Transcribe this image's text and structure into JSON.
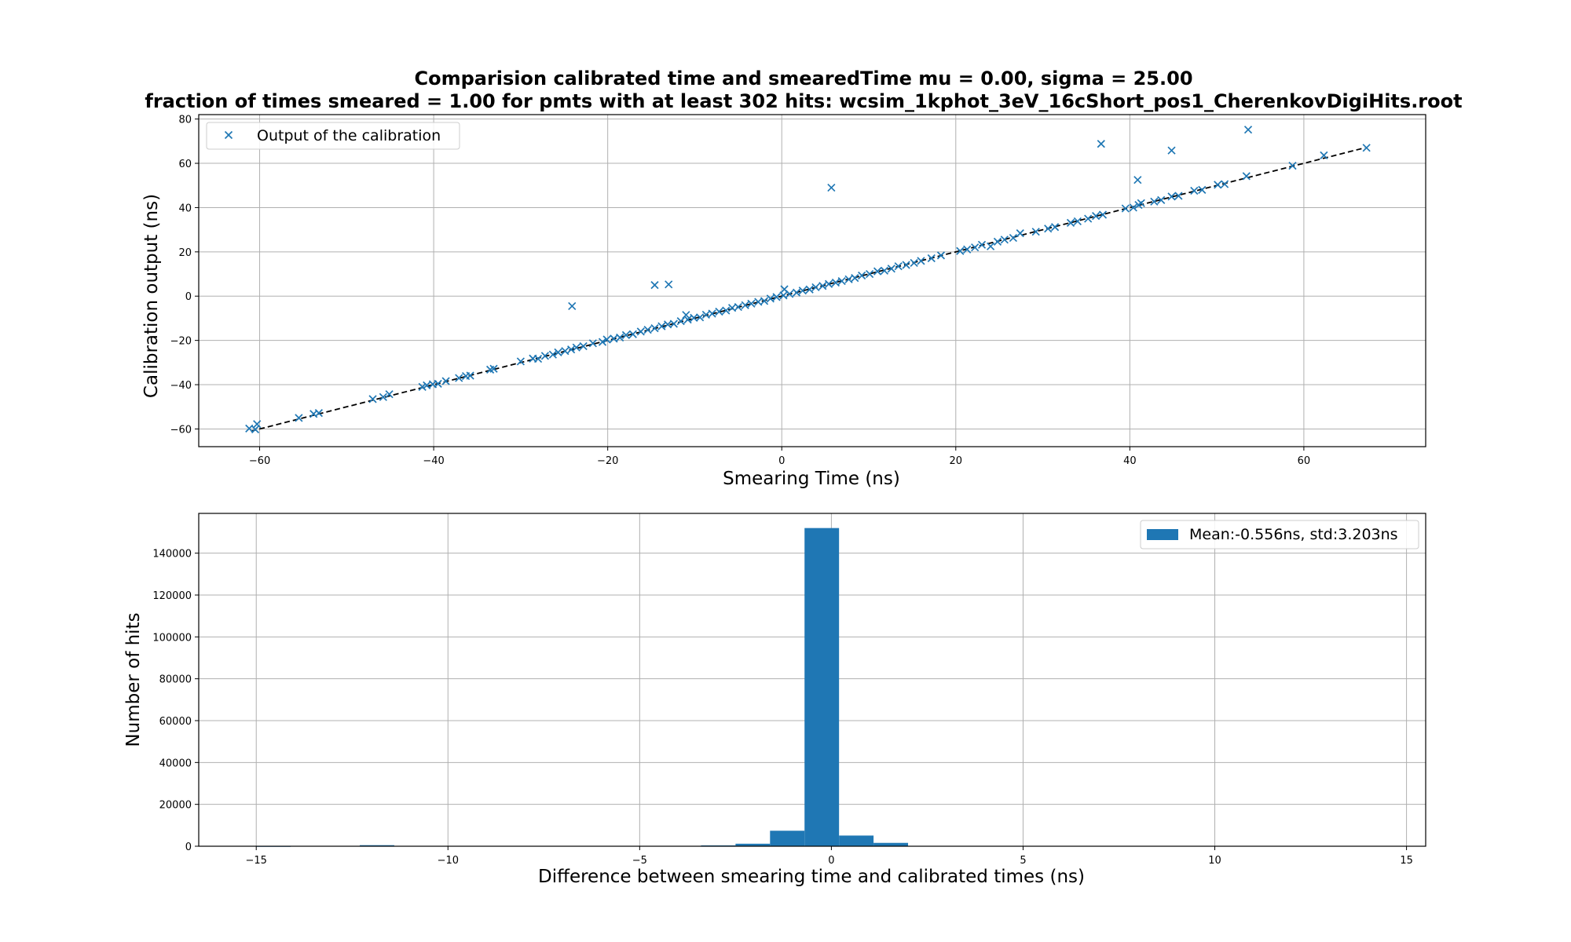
{
  "figure": {
    "title_line1": "Comparision calibrated time and smearedTime mu = 0.00, sigma = 25.00",
    "title_line2": "fraction of times smeared = 1.00 for pmts with at least 302 hits: wcsim_1kphot_3eV_16cShort_pos1_CherenkovDigiHits.root"
  },
  "chart_data": [
    {
      "type": "scatter",
      "xlabel": "Smearing Time (ns)",
      "ylabel": "Calibration output (ns)",
      "xlim": [
        -67,
        74
      ],
      "ylim": [
        -68,
        82
      ],
      "xticks": [
        -60,
        -40,
        -20,
        0,
        20,
        40,
        60
      ],
      "yticks": [
        -60,
        -40,
        -20,
        0,
        20,
        40,
        60,
        80
      ],
      "grid": true,
      "legend_position": "upper-left",
      "color": "#1f77b4",
      "reference_line": {
        "style": "dashed",
        "color": "#000000",
        "x": [
          -61,
          67
        ],
        "y": [
          -61,
          67
        ]
      },
      "series": [
        {
          "name": "Output of the calibration",
          "marker": "x",
          "points": [
            [
              -61.2,
              -59.8
            ],
            [
              -60.5,
              -60.2
            ],
            [
              -60.3,
              -57.8
            ],
            [
              -55.5,
              -55.0
            ],
            [
              -53.8,
              -53.2
            ],
            [
              -53.2,
              -52.8
            ],
            [
              -47.0,
              -46.5
            ],
            [
              -45.8,
              -45.6
            ],
            [
              -45.1,
              -44.3
            ],
            [
              -41.3,
              -41.0
            ],
            [
              -40.8,
              -40.3
            ],
            [
              -40.1,
              -39.8
            ],
            [
              -39.5,
              -39.6
            ],
            [
              -38.6,
              -38.4
            ],
            [
              -37.1,
              -37.0
            ],
            [
              -36.3,
              -36.1
            ],
            [
              -35.8,
              -35.9
            ],
            [
              -33.5,
              -33.2
            ],
            [
              -33.1,
              -32.8
            ],
            [
              -30.0,
              -29.5
            ],
            [
              -28.6,
              -28.2
            ],
            [
              -28.0,
              -28.3
            ],
            [
              -27.2,
              -27.0
            ],
            [
              -26.3,
              -26.4
            ],
            [
              -25.7,
              -25.4
            ],
            [
              -24.9,
              -24.8
            ],
            [
              -24.2,
              -24.1
            ],
            [
              -23.6,
              -23.2
            ],
            [
              -24.1,
              -4.5
            ],
            [
              -22.8,
              -22.6
            ],
            [
              -21.7,
              -21.3
            ],
            [
              -20.6,
              -20.7
            ],
            [
              -20.1,
              -19.6
            ],
            [
              -19.3,
              -19.2
            ],
            [
              -18.6,
              -18.7
            ],
            [
              -17.9,
              -17.6
            ],
            [
              -17.1,
              -17.2
            ],
            [
              -16.2,
              -16.0
            ],
            [
              -15.4,
              -15.2
            ],
            [
              -14.6,
              -14.5
            ],
            [
              -14.6,
              5.0
            ],
            [
              -13.0,
              5.3
            ],
            [
              -13.8,
              -13.6
            ],
            [
              -13.1,
              -12.8
            ],
            [
              -12.4,
              -12.5
            ],
            [
              -11.6,
              -11.3
            ],
            [
              -11.0,
              -8.5
            ],
            [
              -10.8,
              -10.6
            ],
            [
              -10.1,
              -9.8
            ],
            [
              -9.4,
              -9.6
            ],
            [
              -8.7,
              -8.4
            ],
            [
              -8.0,
              -7.9
            ],
            [
              -7.2,
              -7.0
            ],
            [
              -6.4,
              -6.5
            ],
            [
              -5.7,
              -5.3
            ],
            [
              -5.0,
              -4.9
            ],
            [
              -4.2,
              -4.1
            ],
            [
              -3.5,
              -3.4
            ],
            [
              -2.7,
              -2.6
            ],
            [
              -2.0,
              -2.2
            ],
            [
              -1.3,
              -1.1
            ],
            [
              -0.6,
              -0.4
            ],
            [
              0.3,
              3.1
            ],
            [
              0.2,
              0.3
            ],
            [
              0.9,
              1.0
            ],
            [
              1.7,
              1.6
            ],
            [
              2.4,
              2.5
            ],
            [
              3.2,
              3.0
            ],
            [
              3.9,
              4.0
            ],
            [
              4.7,
              4.6
            ],
            [
              5.4,
              5.5
            ],
            [
              6.2,
              6.1
            ],
            [
              6.9,
              6.8
            ],
            [
              7.7,
              7.6
            ],
            [
              5.7,
              49.0
            ],
            [
              8.4,
              8.2
            ],
            [
              9.2,
              9.3
            ],
            [
              10.1,
              10.0
            ],
            [
              11.0,
              11.2
            ],
            [
              11.8,
              11.5
            ],
            [
              12.6,
              12.4
            ],
            [
              13.4,
              13.5
            ],
            [
              14.3,
              14.1
            ],
            [
              15.2,
              15.0
            ],
            [
              16.0,
              15.9
            ],
            [
              17.2,
              17.1
            ],
            [
              18.3,
              18.4
            ],
            [
              20.5,
              20.4
            ],
            [
              21.3,
              21.1
            ],
            [
              22.2,
              22.0
            ],
            [
              23.0,
              23.2
            ],
            [
              24.0,
              22.5
            ],
            [
              24.8,
              24.6
            ],
            [
              25.6,
              25.5
            ],
            [
              26.6,
              26.3
            ],
            [
              27.4,
              28.4
            ],
            [
              29.2,
              29.1
            ],
            [
              30.6,
              30.5
            ],
            [
              31.4,
              31.2
            ],
            [
              33.2,
              33.1
            ],
            [
              34.0,
              33.8
            ],
            [
              35.2,
              35.0
            ],
            [
              36.1,
              36.2
            ],
            [
              36.9,
              36.8
            ],
            [
              36.7,
              68.8
            ],
            [
              39.5,
              39.6
            ],
            [
              40.4,
              40.0
            ],
            [
              41.0,
              41.2
            ],
            [
              41.3,
              42.0
            ],
            [
              40.9,
              52.5
            ],
            [
              42.8,
              42.7
            ],
            [
              43.6,
              43.4
            ],
            [
              44.8,
              45.0
            ],
            [
              45.6,
              45.3
            ],
            [
              44.8,
              65.8
            ],
            [
              47.4,
              47.6
            ],
            [
              48.3,
              48.0
            ],
            [
              50.1,
              50.3
            ],
            [
              50.9,
              50.6
            ],
            [
              53.4,
              54.2
            ],
            [
              53.6,
              75.2
            ],
            [
              58.7,
              58.9
            ],
            [
              62.3,
              63.6
            ],
            [
              67.2,
              67.0
            ]
          ]
        }
      ]
    },
    {
      "type": "bar",
      "subtype": "histogram",
      "xlabel": "Difference between smearing time and calibrated times (ns)",
      "ylabel": "Number of hits",
      "xlim": [
        -16.5,
        15.5
      ],
      "ylim": [
        0,
        159000
      ],
      "xticks": [
        -15,
        -10,
        -5,
        0,
        5,
        10,
        15
      ],
      "yticks": [
        0,
        20000,
        40000,
        60000,
        80000,
        100000,
        120000,
        140000
      ],
      "grid": true,
      "legend_position": "upper-right",
      "color": "#1f77b4",
      "series": [
        {
          "name": "Mean:-0.556ns, std:3.203ns",
          "bins": [
            {
              "x0": -15.0,
              "x1": -14.1,
              "count": 100
            },
            {
              "x0": -12.3,
              "x1": -11.4,
              "count": 500
            },
            {
              "x0": -3.4,
              "x1": -2.5,
              "count": 400
            },
            {
              "x0": -2.5,
              "x1": -1.6,
              "count": 1200
            },
            {
              "x0": -1.6,
              "x1": -0.7,
              "count": 7400
            },
            {
              "x0": -0.7,
              "x1": 0.2,
              "count": 152000
            },
            {
              "x0": 0.2,
              "x1": 1.1,
              "count": 5100
            },
            {
              "x0": 1.1,
              "x1": 2.0,
              "count": 1600
            }
          ]
        }
      ]
    }
  ]
}
